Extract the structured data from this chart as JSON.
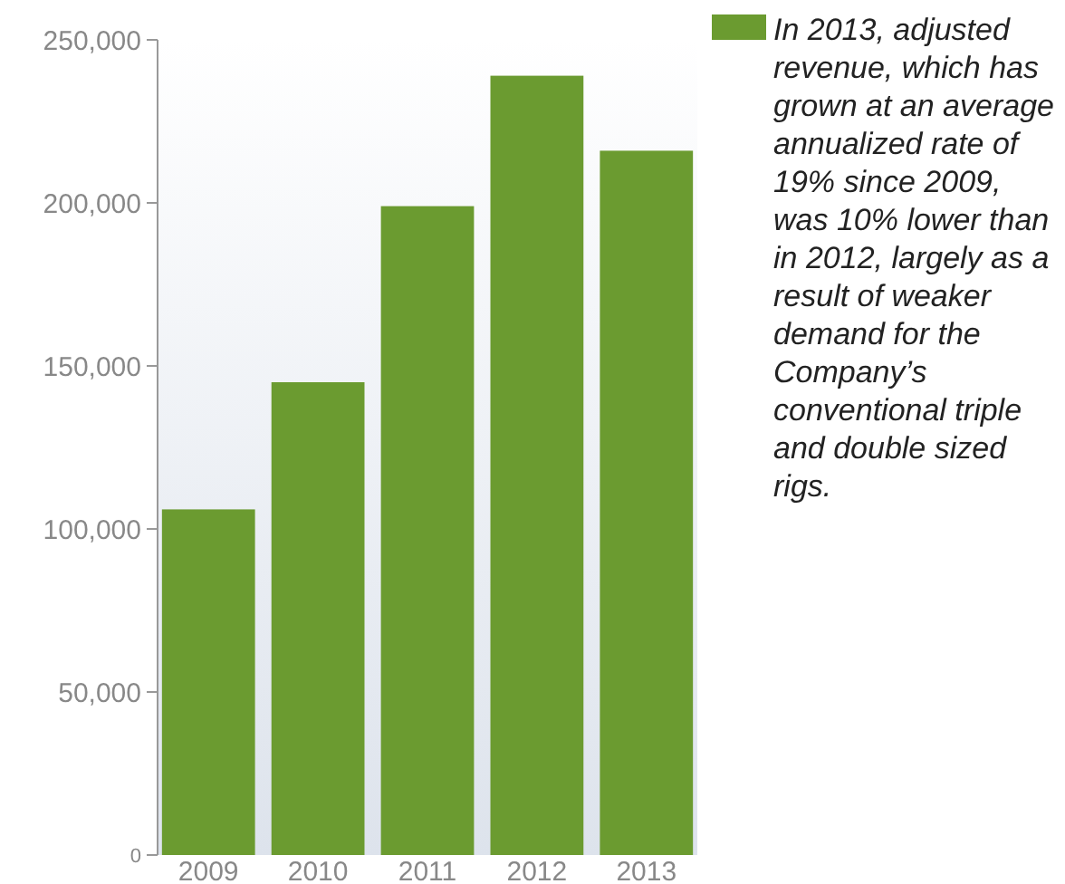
{
  "chart_data": {
    "type": "bar",
    "categories": [
      "2009",
      "2010",
      "2011",
      "2012",
      "2013"
    ],
    "series": [
      {
        "color": "#6b9b30",
        "values": [
          106000,
          145000,
          199000,
          239000,
          216000
        ]
      }
    ],
    "ylim": [
      0,
      250000
    ],
    "yticks": [
      {
        "value": 0,
        "label": "0"
      },
      {
        "value": 50000,
        "label": "50,000"
      },
      {
        "value": 100000,
        "label": "100,000"
      },
      {
        "value": 150000,
        "label": "150,000"
      },
      {
        "value": 200000,
        "label": "200,000"
      },
      {
        "value": 250000,
        "label": "250,000"
      }
    ],
    "annotations": [
      "In 2013, adjusted revenue, which has grown at an average annualized rate of 19% since 2009, was 10% lower than in 2012, largely as a result of weaker demand for the Company’s conventional triple and double sized rigs."
    ]
  }
}
